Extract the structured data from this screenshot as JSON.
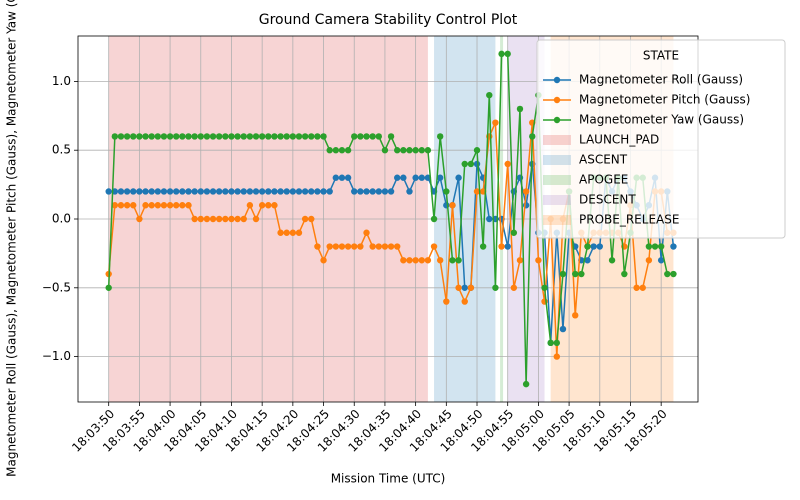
{
  "chart_data": {
    "type": "line",
    "title": "Ground Camera Stability Control Plot",
    "xlabel": "Mission Time (UTC)",
    "ylabel": "Magnetometer Roll (Gauss), Magnetometer Pitch (Gauss), Magnetometer Yaw (Gauss)",
    "legend_title": "STATE",
    "legend": "upper right",
    "grid": true,
    "x": [
      "18:03:50",
      "18:03:51",
      "18:03:52",
      "18:03:53",
      "18:03:54",
      "18:03:55",
      "18:03:56",
      "18:03:57",
      "18:03:58",
      "18:03:59",
      "18:04:00",
      "18:04:01",
      "18:04:02",
      "18:04:03",
      "18:04:04",
      "18:04:05",
      "18:04:06",
      "18:04:07",
      "18:04:08",
      "18:04:09",
      "18:04:10",
      "18:04:11",
      "18:04:12",
      "18:04:13",
      "18:04:14",
      "18:04:15",
      "18:04:16",
      "18:04:17",
      "18:04:18",
      "18:04:19",
      "18:04:20",
      "18:04:21",
      "18:04:22",
      "18:04:23",
      "18:04:24",
      "18:04:25",
      "18:04:26",
      "18:04:27",
      "18:04:28",
      "18:04:29",
      "18:04:30",
      "18:04:31",
      "18:04:32",
      "18:04:33",
      "18:04:34",
      "18:04:35",
      "18:04:36",
      "18:04:37",
      "18:04:38",
      "18:04:39",
      "18:04:40",
      "18:04:41",
      "18:04:42",
      "18:04:43",
      "18:04:44",
      "18:04:45",
      "18:04:46",
      "18:04:47",
      "18:04:48",
      "18:04:49",
      "18:04:50",
      "18:04:51",
      "18:04:52",
      "18:04:53",
      "18:04:54",
      "18:04:55",
      "18:04:56",
      "18:04:57",
      "18:04:58",
      "18:04:59",
      "18:05:00",
      "18:05:01",
      "18:05:02",
      "18:05:03",
      "18:05:04",
      "18:05:05",
      "18:05:06",
      "18:05:07",
      "18:05:08",
      "18:05:09",
      "18:05:10",
      "18:05:11",
      "18:05:12",
      "18:05:13",
      "18:05:14",
      "18:05:15",
      "18:05:16",
      "18:05:17",
      "18:05:18",
      "18:05:19",
      "18:05:20",
      "18:05:21",
      "18:05:22"
    ],
    "series": [
      {
        "name": "Magnetometer Roll (Gauss)",
        "color": "#1f77b4",
        "values": [
          0.2,
          0.2,
          0.2,
          0.2,
          0.2,
          0.2,
          0.2,
          0.2,
          0.2,
          0.2,
          0.2,
          0.2,
          0.2,
          0.2,
          0.2,
          0.2,
          0.2,
          0.2,
          0.2,
          0.2,
          0.2,
          0.2,
          0.2,
          0.2,
          0.2,
          0.2,
          0.2,
          0.2,
          0.2,
          0.2,
          0.2,
          0.2,
          0.2,
          0.2,
          0.2,
          0.2,
          0.2,
          0.3,
          0.3,
          0.3,
          0.2,
          0.2,
          0.2,
          0.2,
          0.2,
          0.2,
          0.2,
          0.3,
          0.3,
          0.2,
          0.3,
          0.3,
          0.3,
          0.2,
          0.3,
          0.1,
          0.1,
          0.3,
          -0.5,
          -0.5,
          0.4,
          0.3,
          0.0,
          0.0,
          0.0,
          -0.2,
          0.2,
          0.3,
          0.1,
          0.4,
          -0.1,
          -0.1,
          -0.9,
          -0.1,
          -0.8,
          -0.1,
          -0.2,
          -0.3,
          -0.3,
          -0.2,
          -0.2,
          0.3,
          0.2,
          0.3,
          0.3,
          0.2,
          0.1,
          0.0,
          0.1,
          0.3,
          -0.3,
          0.2,
          -0.2
        ]
      },
      {
        "name": "Magnetometer Pitch (Gauss)",
        "color": "#ff7f0e",
        "values": [
          -0.4,
          0.1,
          0.1,
          0.1,
          0.1,
          0.0,
          0.1,
          0.1,
          0.1,
          0.1,
          0.1,
          0.1,
          0.1,
          0.1,
          0.0,
          0.0,
          0.0,
          0.0,
          0.0,
          0.0,
          0.0,
          0.0,
          0.0,
          0.1,
          0.0,
          0.1,
          0.1,
          0.1,
          -0.1,
          -0.1,
          -0.1,
          -0.1,
          0.0,
          0.0,
          -0.2,
          -0.3,
          -0.2,
          -0.2,
          -0.2,
          -0.2,
          -0.2,
          -0.2,
          -0.1,
          -0.2,
          -0.2,
          -0.2,
          -0.2,
          -0.2,
          -0.3,
          -0.3,
          -0.3,
          -0.3,
          -0.3,
          -0.2,
          -0.3,
          -0.6,
          0.1,
          -0.5,
          -0.6,
          -0.5,
          0.2,
          0.2,
          0.6,
          0.7,
          -0.2,
          0.4,
          -0.5,
          -0.3,
          0.2,
          0.7,
          -0.3,
          -0.6,
          0.0,
          -1.0,
          0.0,
          0.2,
          -0.7,
          -0.1,
          -0.2,
          -0.1,
          -0.1,
          -0.1,
          -0.1,
          -0.1,
          -0.2,
          0.1,
          -0.5,
          -0.5,
          -0.3,
          0.2,
          0.2,
          -0.1,
          -0.1
        ]
      },
      {
        "name": "Magnetometer Yaw (Gauss)",
        "color": "#2ca02c",
        "values": [
          -0.5,
          0.6,
          0.6,
          0.6,
          0.6,
          0.6,
          0.6,
          0.6,
          0.6,
          0.6,
          0.6,
          0.6,
          0.6,
          0.6,
          0.6,
          0.6,
          0.6,
          0.6,
          0.6,
          0.6,
          0.6,
          0.6,
          0.6,
          0.6,
          0.6,
          0.6,
          0.6,
          0.6,
          0.6,
          0.6,
          0.6,
          0.6,
          0.6,
          0.6,
          0.6,
          0.6,
          0.5,
          0.5,
          0.5,
          0.5,
          0.6,
          0.6,
          0.6,
          0.6,
          0.6,
          0.5,
          0.6,
          0.5,
          0.5,
          0.5,
          0.5,
          0.5,
          0.5,
          0.0,
          0.6,
          0.2,
          -0.3,
          -0.3,
          0.4,
          0.4,
          0.5,
          -0.2,
          0.9,
          -0.5,
          1.2,
          1.2,
          -0.1,
          0.8,
          -1.2,
          0.6,
          0.9,
          -0.5,
          -0.9,
          -0.9,
          -0.4,
          0.2,
          -0.4,
          -0.4,
          -0.2,
          0.3,
          0.3,
          0.3,
          -0.3,
          0.3,
          -0.4,
          -0.1,
          0.3,
          0.3,
          -0.2,
          -0.2,
          -0.2,
          -0.4,
          -0.4
        ]
      }
    ],
    "spans": [
      {
        "name": "LAUNCH_PAD",
        "color": "#d62728",
        "start": "18:03:50",
        "end": "18:04:42"
      },
      {
        "name": "ASCENT",
        "color": "#1f77b4",
        "start": "18:04:43",
        "end": "18:04:53"
      },
      {
        "name": "APOGEE",
        "color": "#2ca02c",
        "start": "18:04:54",
        "end": "18:04:54"
      },
      {
        "name": "DESCENT",
        "color": "#9467bd",
        "start": "18:04:55",
        "end": "18:05:01"
      },
      {
        "name": "PROBE_RELEASE",
        "color": "#ff7f0e",
        "start": "18:05:02",
        "end": "18:05:22"
      }
    ],
    "xlim": [
      "18:03:45",
      "18:05:26"
    ],
    "xticks": [
      "18:03:50",
      "18:03:55",
      "18:04:00",
      "18:04:05",
      "18:04:10",
      "18:04:15",
      "18:04:20",
      "18:04:25",
      "18:04:30",
      "18:04:35",
      "18:04:40",
      "18:04:45",
      "18:04:50",
      "18:04:55",
      "18:05:00",
      "18:05:05",
      "18:05:10",
      "18:05:15",
      "18:05:20"
    ],
    "ylim": [
      -1.33,
      1.33
    ],
    "yticks": [
      {
        "value": -1.0,
        "label": "−1.0"
      },
      {
        "value": -0.5,
        "label": "−0.5"
      },
      {
        "value": 0.0,
        "label": "0.0"
      },
      0.5,
      {
        "value": 1.0,
        "label": "1.0"
      }
    ]
  }
}
